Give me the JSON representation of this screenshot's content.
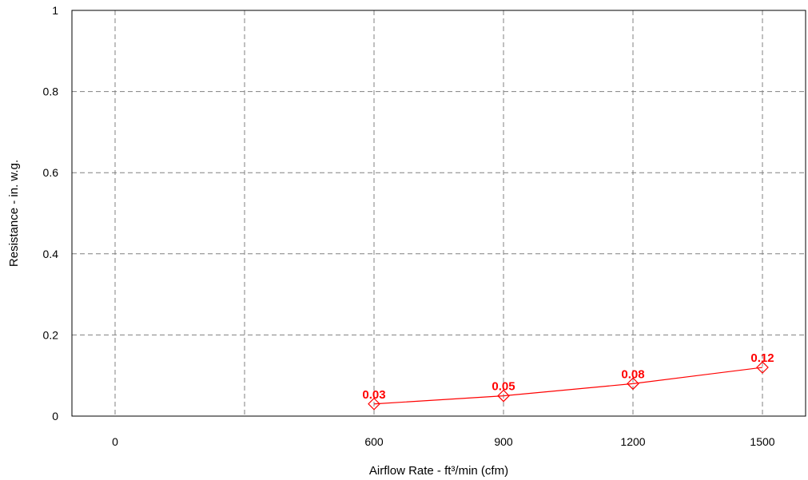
{
  "chart_data": {
    "type": "line",
    "xlabel": "Airflow Rate - ft³/min (cfm)",
    "ylabel": "Resistance - in. w.g.",
    "xlim": [
      -100,
      1600
    ],
    "ylim": [
      0,
      1
    ],
    "x_ticks": [
      0,
      300,
      600,
      900,
      1200,
      1500
    ],
    "x_tick_labels": [
      "0",
      "",
      "600",
      "900",
      "1200",
      "1500"
    ],
    "y_ticks": [
      0,
      0.2,
      0.4,
      0.6,
      0.8,
      1
    ],
    "y_tick_labels": [
      "0",
      "0.2",
      "0.4",
      "0.6",
      "0.8",
      "1"
    ],
    "grid": true,
    "series": [
      {
        "color": "#ff0000",
        "marker": "diamond",
        "x": [
          600,
          900,
          1200,
          1500
        ],
        "y": [
          0.03,
          0.05,
          0.08,
          0.12
        ],
        "labels": [
          "0.03",
          "0.05",
          "0.08",
          "0.12"
        ]
      }
    ]
  }
}
